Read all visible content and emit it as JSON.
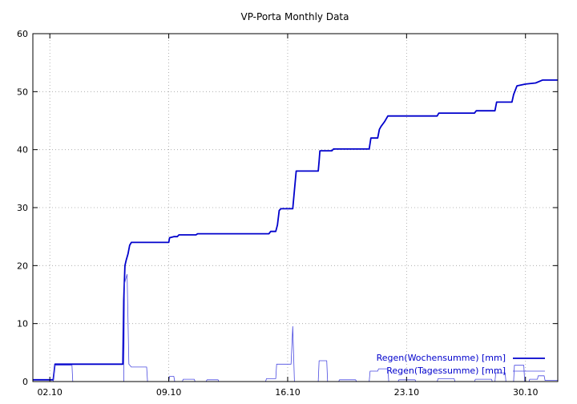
{
  "chart_data": {
    "type": "line",
    "title": "VP-Porta Monthly Data",
    "xlabel": "",
    "ylabel": "",
    "x_unit": "day of October (decimal)",
    "xlim": [
      1.0,
      31.9
    ],
    "ylim": [
      0,
      60
    ],
    "y_ticks": [
      0,
      10,
      20,
      30,
      40,
      50,
      60
    ],
    "x_ticks": [
      {
        "value": 2.0,
        "label": "02.10"
      },
      {
        "value": 9.0,
        "label": "09.10"
      },
      {
        "value": 16.0,
        "label": "16.10"
      },
      {
        "value": 23.0,
        "label": "23.10"
      },
      {
        "value": 30.0,
        "label": "30.10"
      }
    ],
    "grid": true,
    "legend_position": "bottom-right",
    "colors": {
      "weekly": "#0000cc",
      "daily": "#4a4ae0",
      "grid": "#a0a0a0",
      "axis": "#000000"
    },
    "series": [
      {
        "name": "Regen(Wochensumme) [mm]",
        "points": [
          [
            1.0,
            0.3
          ],
          [
            2.2,
            0.3
          ],
          [
            2.3,
            3.0
          ],
          [
            6.3,
            3.0
          ],
          [
            6.35,
            14.0
          ],
          [
            6.42,
            20.0
          ],
          [
            6.5,
            21.0
          ],
          [
            6.6,
            22.0
          ],
          [
            6.7,
            23.5
          ],
          [
            6.8,
            24.0
          ],
          [
            9.0,
            24.0
          ],
          [
            9.05,
            24.8
          ],
          [
            9.3,
            25.0
          ],
          [
            9.5,
            25.0
          ],
          [
            9.6,
            25.3
          ],
          [
            10.6,
            25.3
          ],
          [
            10.7,
            25.5
          ],
          [
            14.9,
            25.5
          ],
          [
            15.0,
            25.9
          ],
          [
            15.3,
            25.9
          ],
          [
            15.4,
            27.0
          ],
          [
            15.5,
            29.5
          ],
          [
            15.6,
            29.8
          ],
          [
            16.3,
            29.8
          ],
          [
            16.4,
            33.0
          ],
          [
            16.5,
            36.3
          ],
          [
            17.8,
            36.3
          ],
          [
            17.85,
            38.0
          ],
          [
            17.9,
            39.8
          ],
          [
            18.6,
            39.8
          ],
          [
            18.7,
            40.1
          ],
          [
            20.8,
            40.1
          ],
          [
            20.9,
            42.0
          ],
          [
            21.3,
            42.0
          ],
          [
            21.4,
            43.5
          ],
          [
            21.5,
            44.0
          ],
          [
            21.7,
            44.8
          ],
          [
            21.9,
            45.8
          ],
          [
            24.8,
            45.8
          ],
          [
            24.9,
            46.3
          ],
          [
            27.0,
            46.3
          ],
          [
            27.1,
            46.7
          ],
          [
            28.2,
            46.7
          ],
          [
            28.3,
            48.2
          ],
          [
            29.2,
            48.2
          ],
          [
            29.3,
            49.5
          ],
          [
            29.5,
            51.0
          ],
          [
            30.0,
            51.3
          ],
          [
            30.6,
            51.5
          ],
          [
            31.0,
            52.0
          ],
          [
            31.9,
            52.0
          ]
        ]
      },
      {
        "name": "Regen(Tagessumme) [mm]",
        "points": [
          [
            1.0,
            0.0
          ],
          [
            2.2,
            0.0
          ],
          [
            2.3,
            2.8
          ],
          [
            3.3,
            2.8
          ],
          [
            3.35,
            0.0
          ],
          [
            6.35,
            0.0
          ],
          [
            6.4,
            17.0
          ],
          [
            6.55,
            18.5
          ],
          [
            6.65,
            3.0
          ],
          [
            6.8,
            2.5
          ],
          [
            7.7,
            2.5
          ],
          [
            7.75,
            0.0
          ],
          [
            9.0,
            0.0
          ],
          [
            9.05,
            0.9
          ],
          [
            9.3,
            0.9
          ],
          [
            9.35,
            0.0
          ],
          [
            9.8,
            0.0
          ],
          [
            9.85,
            0.4
          ],
          [
            10.5,
            0.4
          ],
          [
            10.55,
            0.0
          ],
          [
            11.2,
            0.0
          ],
          [
            11.25,
            0.3
          ],
          [
            11.9,
            0.3
          ],
          [
            11.95,
            0.0
          ],
          [
            14.7,
            0.0
          ],
          [
            14.75,
            0.5
          ],
          [
            15.3,
            0.5
          ],
          [
            15.35,
            3.0
          ],
          [
            16.2,
            3.0
          ],
          [
            16.3,
            9.5
          ],
          [
            16.4,
            0.0
          ],
          [
            17.8,
            0.0
          ],
          [
            17.85,
            3.6
          ],
          [
            18.3,
            3.6
          ],
          [
            18.35,
            0.0
          ],
          [
            19.0,
            0.0
          ],
          [
            19.05,
            0.3
          ],
          [
            20.0,
            0.3
          ],
          [
            20.05,
            0.0
          ],
          [
            20.8,
            0.0
          ],
          [
            20.85,
            1.8
          ],
          [
            21.3,
            1.8
          ],
          [
            21.35,
            2.2
          ],
          [
            21.9,
            2.2
          ],
          [
            21.95,
            0.0
          ],
          [
            22.5,
            0.0
          ],
          [
            22.55,
            0.3
          ],
          [
            23.5,
            0.3
          ],
          [
            23.55,
            0.0
          ],
          [
            24.8,
            0.0
          ],
          [
            24.85,
            0.5
          ],
          [
            25.8,
            0.5
          ],
          [
            25.85,
            0.0
          ],
          [
            27.0,
            0.0
          ],
          [
            27.05,
            0.4
          ],
          [
            28.0,
            0.4
          ],
          [
            28.05,
            0.0
          ],
          [
            28.2,
            0.0
          ],
          [
            28.25,
            1.5
          ],
          [
            28.8,
            1.5
          ],
          [
            28.85,
            0.0
          ],
          [
            29.3,
            0.0
          ],
          [
            29.35,
            2.8
          ],
          [
            29.9,
            2.8
          ],
          [
            29.95,
            0.0
          ],
          [
            30.2,
            0.0
          ],
          [
            30.25,
            0.4
          ],
          [
            30.7,
            0.4
          ],
          [
            30.75,
            1.0
          ],
          [
            31.1,
            1.0
          ],
          [
            31.15,
            0.2
          ],
          [
            31.9,
            0.2
          ]
        ]
      }
    ]
  }
}
